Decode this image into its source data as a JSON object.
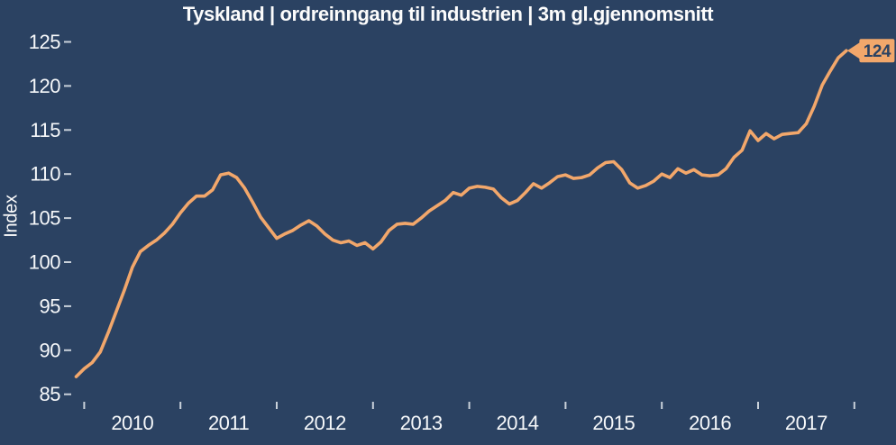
{
  "chart_data": {
    "type": "line",
    "title": "Tyskland | ordreinngang til industrien | 3m gl.gjennomsnitt",
    "xlabel": "",
    "ylabel": "Index",
    "grid": false,
    "legend": false,
    "ylim": [
      85,
      125
    ],
    "y_ticks": [
      85,
      90,
      95,
      100,
      105,
      110,
      115,
      120,
      125
    ],
    "x_tick_labels": [
      "2010",
      "2011",
      "2012",
      "2013",
      "2014",
      "2015",
      "2016",
      "2017"
    ],
    "series_start": "2009-12",
    "frequency": "monthly",
    "end_label": "124",
    "values": [
      87.0,
      87.9,
      88.6,
      89.8,
      92.0,
      94.4,
      96.8,
      99.4,
      101.2,
      101.9,
      102.5,
      103.3,
      104.3,
      105.6,
      106.7,
      107.5,
      107.5,
      108.2,
      109.9,
      110.1,
      109.6,
      108.4,
      106.8,
      105.1,
      103.9,
      102.7,
      103.2,
      103.6,
      104.2,
      104.7,
      104.1,
      103.2,
      102.5,
      102.2,
      102.4,
      101.9,
      102.2,
      101.5,
      102.3,
      103.6,
      104.3,
      104.4,
      104.3,
      105.0,
      105.8,
      106.4,
      107.0,
      107.9,
      107.6,
      108.4,
      108.6,
      108.5,
      108.3,
      107.3,
      106.6,
      107.0,
      107.9,
      108.9,
      108.4,
      109.0,
      109.7,
      109.9,
      109.5,
      109.6,
      109.9,
      110.7,
      111.3,
      111.4,
      110.5,
      109.0,
      108.4,
      108.7,
      109.2,
      110.0,
      109.6,
      110.6,
      110.1,
      110.5,
      109.9,
      109.8,
      109.9,
      110.6,
      111.9,
      112.7,
      114.9,
      113.8,
      114.6,
      114.0,
      114.5,
      114.6,
      114.7,
      115.7,
      117.7,
      120.1,
      121.7,
      123.2,
      124.0
    ],
    "colors": {
      "background": "#2b4262",
      "line": "#f2a76b",
      "text": "#fcfcfc",
      "tick": "#c9d1da",
      "callout_bg": "#f2a76b",
      "callout_text": "#2b4262"
    }
  }
}
